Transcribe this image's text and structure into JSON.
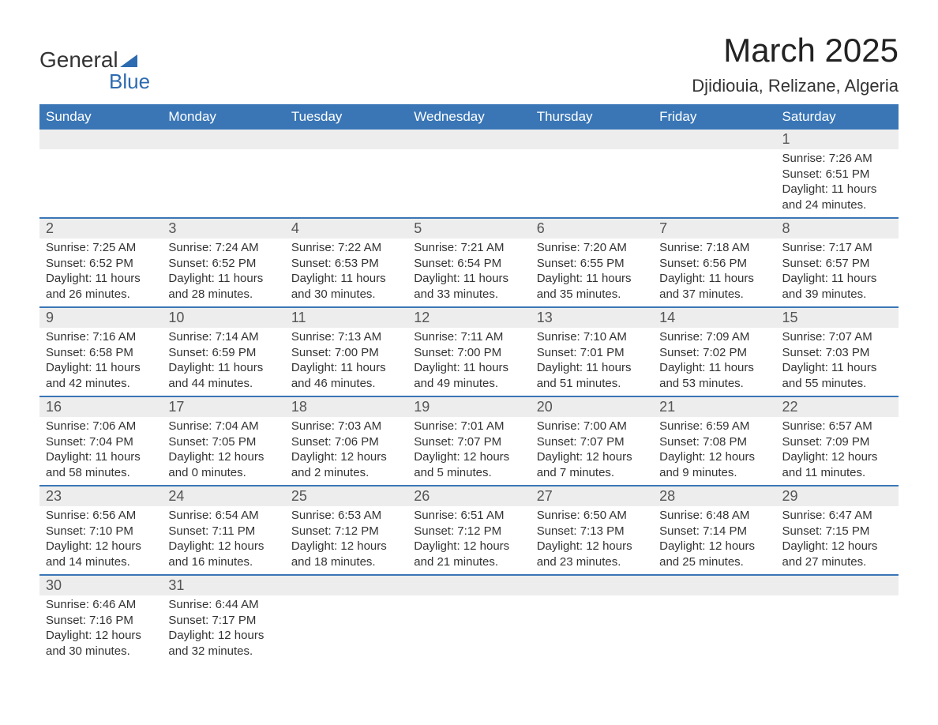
{
  "logo": {
    "word1": "General",
    "word2": "Blue"
  },
  "title": "March 2025",
  "subtitle": "Djidiouia, Relizane, Algeria",
  "colors": {
    "header_bg": "#3a76b6",
    "header_text": "#ffffff",
    "daynum_bg": "#ededed",
    "border": "#3a76b6",
    "body_text": "#333333",
    "logo_blue": "#2d6bb0"
  },
  "fonts": {
    "title_size_pt": 32,
    "subtitle_size_pt": 17,
    "header_size_pt": 13,
    "daynum_size_pt": 14,
    "detail_size_pt": 11
  },
  "day_headers": [
    "Sunday",
    "Monday",
    "Tuesday",
    "Wednesday",
    "Thursday",
    "Friday",
    "Saturday"
  ],
  "weeks": [
    [
      null,
      null,
      null,
      null,
      null,
      null,
      {
        "n": "1",
        "sunrise": "7:26 AM",
        "sunset": "6:51 PM",
        "dl1": "11 hours",
        "dl2": "and 24 minutes."
      }
    ],
    [
      {
        "n": "2",
        "sunrise": "7:25 AM",
        "sunset": "6:52 PM",
        "dl1": "11 hours",
        "dl2": "and 26 minutes."
      },
      {
        "n": "3",
        "sunrise": "7:24 AM",
        "sunset": "6:52 PM",
        "dl1": "11 hours",
        "dl2": "and 28 minutes."
      },
      {
        "n": "4",
        "sunrise": "7:22 AM",
        "sunset": "6:53 PM",
        "dl1": "11 hours",
        "dl2": "and 30 minutes."
      },
      {
        "n": "5",
        "sunrise": "7:21 AM",
        "sunset": "6:54 PM",
        "dl1": "11 hours",
        "dl2": "and 33 minutes."
      },
      {
        "n": "6",
        "sunrise": "7:20 AM",
        "sunset": "6:55 PM",
        "dl1": "11 hours",
        "dl2": "and 35 minutes."
      },
      {
        "n": "7",
        "sunrise": "7:18 AM",
        "sunset": "6:56 PM",
        "dl1": "11 hours",
        "dl2": "and 37 minutes."
      },
      {
        "n": "8",
        "sunrise": "7:17 AM",
        "sunset": "6:57 PM",
        "dl1": "11 hours",
        "dl2": "and 39 minutes."
      }
    ],
    [
      {
        "n": "9",
        "sunrise": "7:16 AM",
        "sunset": "6:58 PM",
        "dl1": "11 hours",
        "dl2": "and 42 minutes."
      },
      {
        "n": "10",
        "sunrise": "7:14 AM",
        "sunset": "6:59 PM",
        "dl1": "11 hours",
        "dl2": "and 44 minutes."
      },
      {
        "n": "11",
        "sunrise": "7:13 AM",
        "sunset": "7:00 PM",
        "dl1": "11 hours",
        "dl2": "and 46 minutes."
      },
      {
        "n": "12",
        "sunrise": "7:11 AM",
        "sunset": "7:00 PM",
        "dl1": "11 hours",
        "dl2": "and 49 minutes."
      },
      {
        "n": "13",
        "sunrise": "7:10 AM",
        "sunset": "7:01 PM",
        "dl1": "11 hours",
        "dl2": "and 51 minutes."
      },
      {
        "n": "14",
        "sunrise": "7:09 AM",
        "sunset": "7:02 PM",
        "dl1": "11 hours",
        "dl2": "and 53 minutes."
      },
      {
        "n": "15",
        "sunrise": "7:07 AM",
        "sunset": "7:03 PM",
        "dl1": "11 hours",
        "dl2": "and 55 minutes."
      }
    ],
    [
      {
        "n": "16",
        "sunrise": "7:06 AM",
        "sunset": "7:04 PM",
        "dl1": "11 hours",
        "dl2": "and 58 minutes."
      },
      {
        "n": "17",
        "sunrise": "7:04 AM",
        "sunset": "7:05 PM",
        "dl1": "12 hours",
        "dl2": "and 0 minutes."
      },
      {
        "n": "18",
        "sunrise": "7:03 AM",
        "sunset": "7:06 PM",
        "dl1": "12 hours",
        "dl2": "and 2 minutes."
      },
      {
        "n": "19",
        "sunrise": "7:01 AM",
        "sunset": "7:07 PM",
        "dl1": "12 hours",
        "dl2": "and 5 minutes."
      },
      {
        "n": "20",
        "sunrise": "7:00 AM",
        "sunset": "7:07 PM",
        "dl1": "12 hours",
        "dl2": "and 7 minutes."
      },
      {
        "n": "21",
        "sunrise": "6:59 AM",
        "sunset": "7:08 PM",
        "dl1": "12 hours",
        "dl2": "and 9 minutes."
      },
      {
        "n": "22",
        "sunrise": "6:57 AM",
        "sunset": "7:09 PM",
        "dl1": "12 hours",
        "dl2": "and 11 minutes."
      }
    ],
    [
      {
        "n": "23",
        "sunrise": "6:56 AM",
        "sunset": "7:10 PM",
        "dl1": "12 hours",
        "dl2": "and 14 minutes."
      },
      {
        "n": "24",
        "sunrise": "6:54 AM",
        "sunset": "7:11 PM",
        "dl1": "12 hours",
        "dl2": "and 16 minutes."
      },
      {
        "n": "25",
        "sunrise": "6:53 AM",
        "sunset": "7:12 PM",
        "dl1": "12 hours",
        "dl2": "and 18 minutes."
      },
      {
        "n": "26",
        "sunrise": "6:51 AM",
        "sunset": "7:12 PM",
        "dl1": "12 hours",
        "dl2": "and 21 minutes."
      },
      {
        "n": "27",
        "sunrise": "6:50 AM",
        "sunset": "7:13 PM",
        "dl1": "12 hours",
        "dl2": "and 23 minutes."
      },
      {
        "n": "28",
        "sunrise": "6:48 AM",
        "sunset": "7:14 PM",
        "dl1": "12 hours",
        "dl2": "and 25 minutes."
      },
      {
        "n": "29",
        "sunrise": "6:47 AM",
        "sunset": "7:15 PM",
        "dl1": "12 hours",
        "dl2": "and 27 minutes."
      }
    ],
    [
      {
        "n": "30",
        "sunrise": "6:46 AM",
        "sunset": "7:16 PM",
        "dl1": "12 hours",
        "dl2": "and 30 minutes."
      },
      {
        "n": "31",
        "sunrise": "6:44 AM",
        "sunset": "7:17 PM",
        "dl1": "12 hours",
        "dl2": "and 32 minutes."
      },
      null,
      null,
      null,
      null,
      null
    ]
  ],
  "labels": {
    "sunrise": "Sunrise: ",
    "sunset": "Sunset: ",
    "daylight": "Daylight: "
  }
}
